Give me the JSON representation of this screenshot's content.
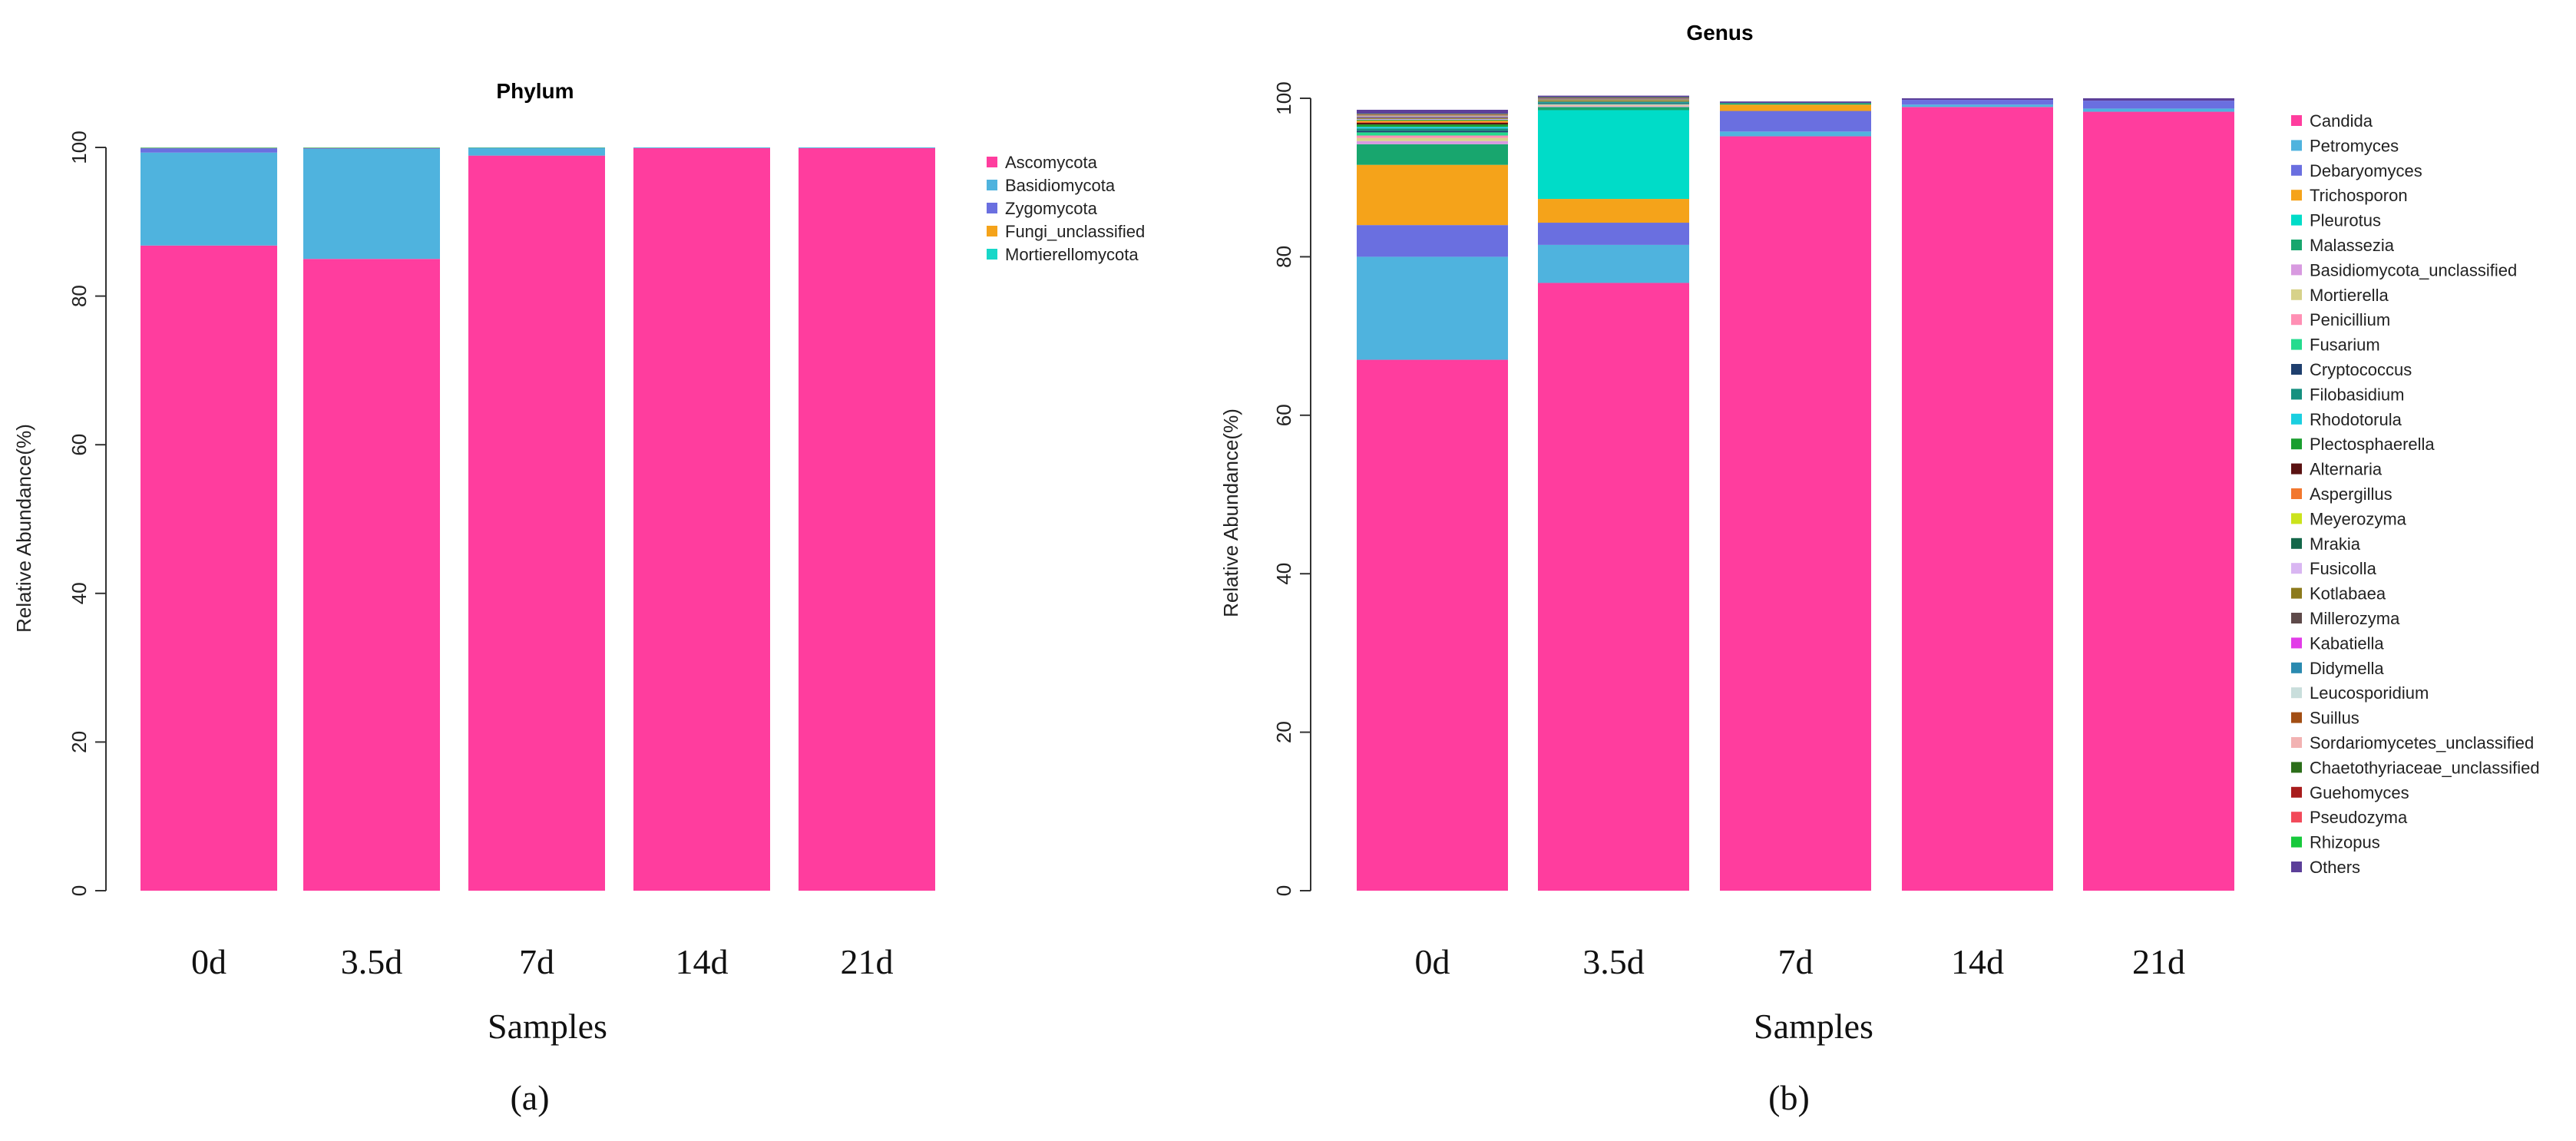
{
  "chart_data": [
    {
      "type": "bar",
      "stacked": true,
      "panel_label": "(a)",
      "title": "Phylum",
      "xlabel": "Samples",
      "ylabel": "Relative Abundance(%)",
      "ylim": [
        0,
        100
      ],
      "yticks": [
        0,
        20,
        40,
        60,
        80,
        100
      ],
      "categories": [
        "0d",
        "3.5d",
        "7d",
        "14d",
        "21d"
      ],
      "series": [
        {
          "name": "Ascomycota",
          "color": "#FF3D9E",
          "values": [
            86.8,
            85.0,
            98.9,
            99.9,
            99.9
          ]
        },
        {
          "name": "Basidiomycota",
          "color": "#4FB3DE",
          "values": [
            12.5,
            14.8,
            1.0,
            0.1,
            0.1
          ]
        },
        {
          "name": "Zygomycota",
          "color": "#6A6FE0",
          "values": [
            0.6,
            0.1,
            0.05,
            0.0,
            0.0
          ]
        },
        {
          "name": "Fungi_unclassified",
          "color": "#F5A31A",
          "values": [
            0.05,
            0.05,
            0.03,
            0.0,
            0.0
          ]
        },
        {
          "name": "Mortierellomycota",
          "color": "#17D7C8",
          "values": [
            0.05,
            0.05,
            0.02,
            0.0,
            0.0
          ]
        }
      ]
    },
    {
      "type": "bar",
      "stacked": true,
      "panel_label": "(b)",
      "title": "Genus",
      "xlabel": "Samples",
      "ylabel": "Relative Abundance(%)",
      "ylim": [
        0,
        100
      ],
      "yticks": [
        0,
        20,
        40,
        60,
        80,
        100
      ],
      "categories": [
        "0d",
        "3.5d",
        "7d",
        "14d",
        "21d"
      ],
      "series": [
        {
          "name": "Candida",
          "color": "#FF3D9E",
          "values": [
            67.0,
            76.7,
            95.2,
            98.9,
            98.3
          ]
        },
        {
          "name": "Petromyces",
          "color": "#4FB3DE",
          "values": [
            13.0,
            4.8,
            0.6,
            0.3,
            0.4
          ]
        },
        {
          "name": "Debaryomyces",
          "color": "#6A6FE0",
          "values": [
            4.0,
            2.8,
            2.6,
            0.6,
            1.0
          ]
        },
        {
          "name": "Trichosporon",
          "color": "#F5A31A",
          "values": [
            7.6,
            3.0,
            0.8,
            0.0,
            0.0
          ]
        },
        {
          "name": "Pleurotus",
          "color": "#00DCC8",
          "values": [
            0.0,
            11.2,
            0.0,
            0.0,
            0.0
          ]
        },
        {
          "name": "Malassezia",
          "color": "#18A66E",
          "values": [
            2.6,
            0.4,
            0.2,
            0.0,
            0.0
          ]
        },
        {
          "name": "Basidiomycota_unclassified",
          "color": "#D89AE0",
          "values": [
            0.4,
            0.1,
            0.0,
            0.0,
            0.0
          ]
        },
        {
          "name": "Mortierella",
          "color": "#D7D28A",
          "values": [
            0.4,
            0.1,
            0.0,
            0.0,
            0.0
          ]
        },
        {
          "name": "Penicillium",
          "color": "#FF8FB4",
          "values": [
            0.3,
            0.1,
            0.0,
            0.0,
            0.0
          ]
        },
        {
          "name": "Fusarium",
          "color": "#25DB8E",
          "values": [
            0.4,
            0.1,
            0.0,
            0.0,
            0.0
          ]
        },
        {
          "name": "Cryptococcus",
          "color": "#1F3F6E",
          "values": [
            0.2,
            0.1,
            0.0,
            0.0,
            0.0
          ]
        },
        {
          "name": "Filobasidium",
          "color": "#15907F",
          "values": [
            0.3,
            0.1,
            0.0,
            0.0,
            0.0
          ]
        },
        {
          "name": "Rhodotorula",
          "color": "#1ACFE0",
          "values": [
            0.2,
            0.05,
            0.0,
            0.0,
            0.0
          ]
        },
        {
          "name": "Plectosphaerella",
          "color": "#1A9E2F",
          "values": [
            0.3,
            0.05,
            0.0,
            0.0,
            0.0
          ]
        },
        {
          "name": "Alternaria",
          "color": "#5A1212",
          "values": [
            0.2,
            0.05,
            0.0,
            0.0,
            0.0
          ]
        },
        {
          "name": "Aspergillus",
          "color": "#F2772E",
          "values": [
            0.2,
            0.05,
            0.0,
            0.0,
            0.0
          ]
        },
        {
          "name": "Meyerozyma",
          "color": "#CBE31C",
          "values": [
            0.1,
            0.05,
            0.0,
            0.0,
            0.0
          ]
        },
        {
          "name": "Mrakia",
          "color": "#14674A",
          "values": [
            0.1,
            0.05,
            0.0,
            0.0,
            0.0
          ]
        },
        {
          "name": "Fusicolla",
          "color": "#D9B6F2",
          "values": [
            0.1,
            0.05,
            0.0,
            0.0,
            0.0
          ]
        },
        {
          "name": "Kotlabaea",
          "color": "#8C7A1C",
          "values": [
            0.1,
            0.05,
            0.0,
            0.0,
            0.0
          ]
        },
        {
          "name": "Millerozyma",
          "color": "#5E4A4A",
          "values": [
            0.1,
            0.05,
            0.0,
            0.0,
            0.0
          ]
        },
        {
          "name": "Kabatiella",
          "color": "#E23CE8",
          "values": [
            0.05,
            0.02,
            0.0,
            0.0,
            0.0
          ]
        },
        {
          "name": "Didymella",
          "color": "#2A8AB0",
          "values": [
            0.05,
            0.02,
            0.0,
            0.0,
            0.0
          ]
        },
        {
          "name": "Leucosporidium",
          "color": "#C9DEDC",
          "values": [
            0.05,
            0.02,
            0.0,
            0.0,
            0.0
          ]
        },
        {
          "name": "Suillus",
          "color": "#A24E14",
          "values": [
            0.05,
            0.02,
            0.0,
            0.0,
            0.0
          ]
        },
        {
          "name": "Sordariomycetes_unclassified",
          "color": "#F2B2B2",
          "values": [
            0.05,
            0.02,
            0.0,
            0.0,
            0.0
          ]
        },
        {
          "name": "Chaetothyriaceae_unclassified",
          "color": "#2C6E1A",
          "values": [
            0.05,
            0.02,
            0.0,
            0.0,
            0.0
          ]
        },
        {
          "name": "Guehomyces",
          "color": "#A81C1C",
          "values": [
            0.05,
            0.02,
            0.0,
            0.0,
            0.0
          ]
        },
        {
          "name": "Pseudozyma",
          "color": "#F24A5A",
          "values": [
            0.05,
            0.02,
            0.0,
            0.0,
            0.0
          ]
        },
        {
          "name": "Rhizopus",
          "color": "#17C93C",
          "values": [
            0.05,
            0.02,
            0.0,
            0.0,
            0.0
          ]
        },
        {
          "name": "Others",
          "color": "#5C3F99",
          "values": [
            0.5,
            0.2,
            0.2,
            0.2,
            0.3
          ]
        }
      ]
    }
  ]
}
